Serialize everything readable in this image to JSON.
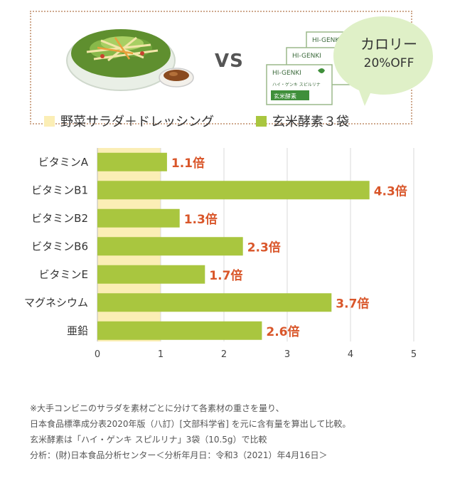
{
  "header": {
    "vs_text": "VS",
    "bubble_line1": "カロリー",
    "bubble_line2": "20%OFF",
    "pack_brand": "HI-GENKI",
    "pack_subtitle": "ハイ・ゲンキ スピルリナ",
    "pack_label": "玄米酵素"
  },
  "legend": [
    {
      "label": "野菜サラダ＋ドレッシング",
      "color": "#fbeeb5"
    },
    {
      "label": "玄米酵素３袋",
      "color": "#a9c63f"
    }
  ],
  "chart_data": {
    "type": "bar",
    "orientation": "horizontal",
    "categories": [
      "ビタミンA",
      "ビタミンB1",
      "ビタミンB2",
      "ビタミンB6",
      "ビタミンE",
      "マグネシウム",
      "亜鉛"
    ],
    "series": [
      {
        "name": "玄米酵素３袋",
        "values": [
          1.1,
          4.3,
          1.3,
          2.3,
          1.7,
          3.7,
          2.6
        ]
      }
    ],
    "baseline_value": 1,
    "value_labels": [
      "1.1倍",
      "4.3倍",
      "1.3倍",
      "2.3倍",
      "1.7倍",
      "3.7倍",
      "2.6倍"
    ],
    "xticks": [
      "0",
      "1",
      "2",
      "3",
      "4",
      "5"
    ],
    "xlim": [
      0,
      5
    ],
    "grid": true,
    "colors": {
      "bar": "#a9c63f",
      "baseline_band": "#fbeeb5",
      "value_text": "#d9562a"
    }
  },
  "notes": [
    "※大手コンビニのサラダを素材ごとに分けて各素材の重さを量り、",
    "日本食品標準成分表2020年版（八訂）[文部科学省] を元に含有量を算出して比較。",
    "玄米酵素は「ハイ・ゲンキ スピルリナ」3袋（10.5g）で比較",
    "分析：(財)日本食品分析センター＜分析年月日：令和3（2021）年4月16日＞"
  ]
}
